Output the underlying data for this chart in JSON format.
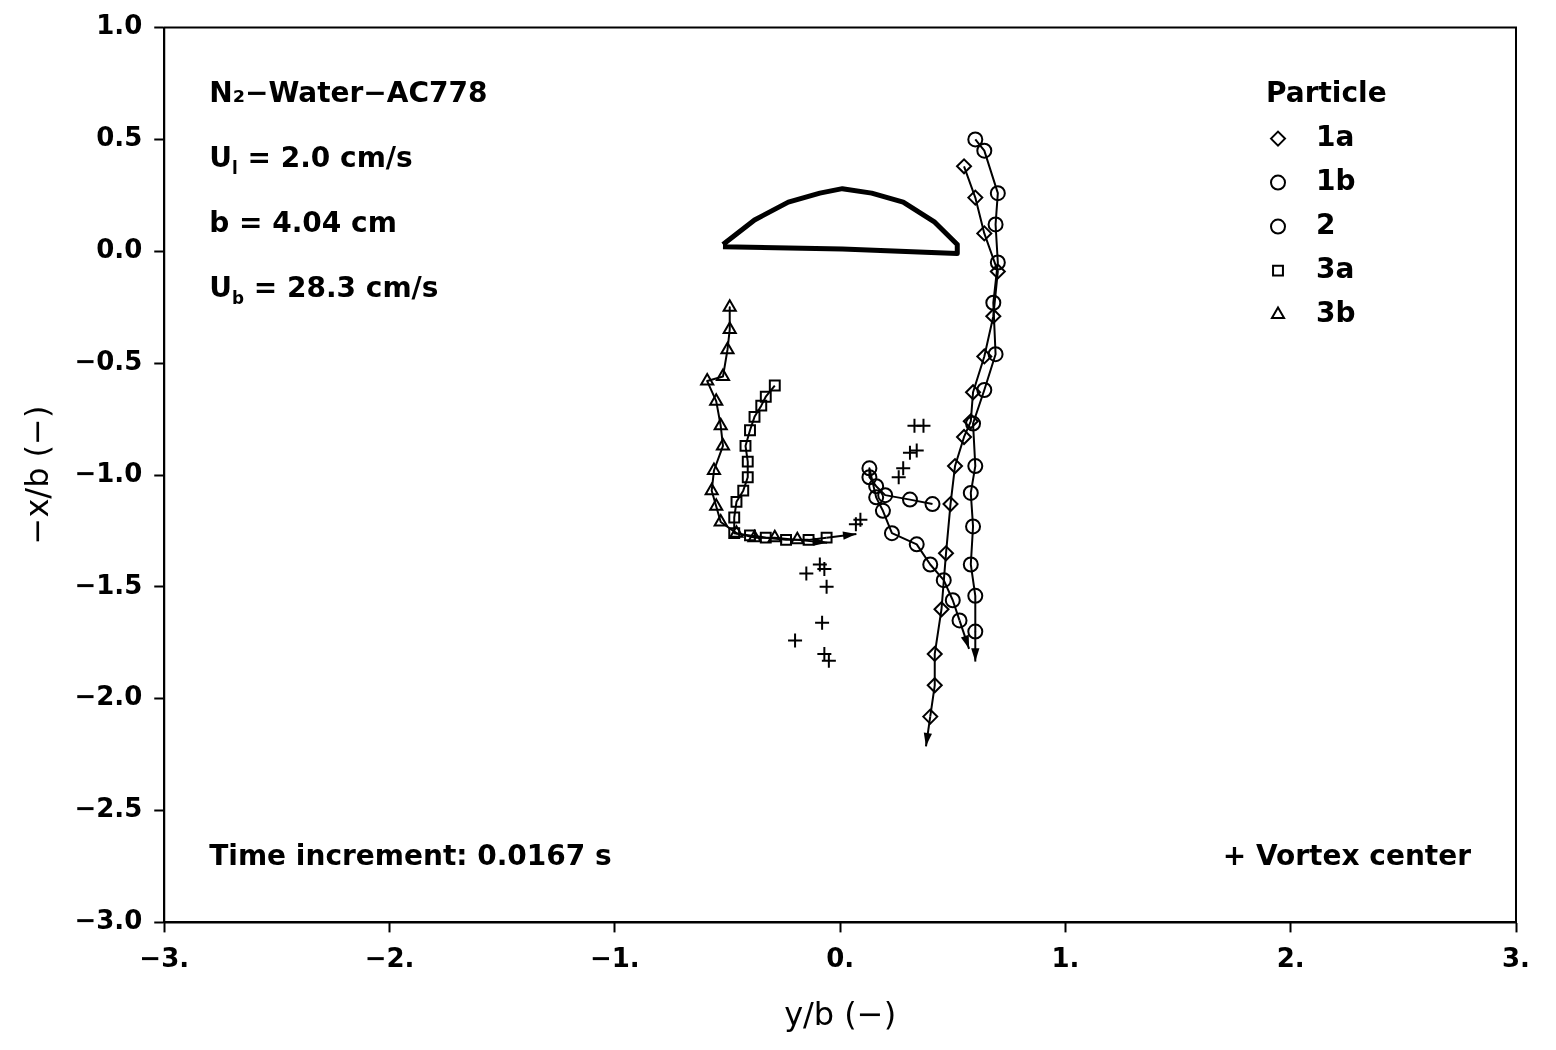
{
  "chart_data": {
    "type": "line",
    "xlabel": "y/b (−)",
    "ylabel": "−x/b (−)",
    "legend_title": "Particle",
    "legend": "top right",
    "grid": false,
    "xlim": [
      -3,
      3
    ],
    "xticks": [
      {
        "value": -3,
        "label": "−3."
      },
      {
        "value": -2,
        "label": "−2."
      },
      {
        "value": -1,
        "label": "−1."
      },
      {
        "value": 0,
        "label": "0."
      },
      {
        "value": 1,
        "label": "1."
      },
      {
        "value": 2,
        "label": "2."
      },
      {
        "value": 3,
        "label": "3."
      }
    ],
    "ylim": [
      -3,
      1
    ],
    "yticks": [
      {
        "value": -3,
        "label": "−3.0"
      },
      {
        "value": -2.5,
        "label": "−2.5"
      },
      {
        "value": -2,
        "label": "−2.0"
      },
      {
        "value": -1.5,
        "label": "−1.5"
      },
      {
        "value": -1,
        "label": "−1.0"
      },
      {
        "value": -0.5,
        "label": "−0.5"
      },
      {
        "value": 0,
        "label": "0.0"
      },
      {
        "value": 0.5,
        "label": "0.5"
      },
      {
        "value": 1,
        "label": "1.0"
      }
    ],
    "annotations": [
      "N₂−Water−AC778",
      "U$_{l}$ = 2.0 cm/s",
      "b = 4.04 cm",
      "U$_{b}$ = 28.3 cm/s",
      "Time increment: 0.0167 s",
      "+ Vortex center"
    ],
    "series": [
      {
        "name": "1a",
        "marker": "diamond",
        "color": "#000000",
        "x": [
          0.55,
          0.6,
          0.64,
          0.7,
          0.68,
          0.64,
          0.59,
          0.58,
          0.55,
          0.51,
          0.49,
          0.47,
          0.45,
          0.42,
          0.42,
          0.4
        ],
        "values": [
          0.38,
          0.24,
          0.08,
          -0.09,
          -0.29,
          -0.47,
          -0.63,
          -0.76,
          -0.83,
          -0.96,
          -1.13,
          -1.35,
          -1.6,
          -1.8,
          -1.94,
          -2.08
        ]
      },
      {
        "name": "1b",
        "marker": "circle",
        "color": "#000000",
        "x": [
          0.6,
          0.64,
          0.7,
          0.69,
          0.7,
          0.68,
          0.69,
          0.64,
          0.59,
          0.6,
          0.58,
          0.59,
          0.58,
          0.6,
          0.6
        ],
        "values": [
          0.5,
          0.45,
          0.26,
          0.12,
          -0.05,
          -0.23,
          -0.46,
          -0.62,
          -0.77,
          -0.96,
          -1.08,
          -1.23,
          -1.4,
          -1.54,
          -1.7
        ]
      },
      {
        "name": "2",
        "marker": "circle",
        "color": "#000000",
        "x": [
          0.41,
          0.31,
          0.2,
          0.16,
          0.13,
          0.13,
          0.16,
          0.19,
          0.23,
          0.34,
          0.4,
          0.46,
          0.5,
          0.53
        ],
        "values": [
          -1.13,
          -1.11,
          -1.09,
          -1.05,
          -1.01,
          -0.97,
          -1.1,
          -1.16,
          -1.26,
          -1.31,
          -1.4,
          -1.47,
          -1.56,
          -1.65
        ]
      },
      {
        "name": "3a",
        "marker": "square",
        "color": "#000000",
        "x": [
          -0.29,
          -0.33,
          -0.35,
          -0.38,
          -0.4,
          -0.42,
          -0.41,
          -0.41,
          -0.43,
          -0.46,
          -0.47,
          -0.47,
          -0.4,
          -0.33,
          -0.24,
          -0.14,
          -0.06
        ],
        "values": [
          -0.6,
          -0.65,
          -0.69,
          -0.74,
          -0.8,
          -0.87,
          -0.94,
          -1.01,
          -1.07,
          -1.12,
          -1.19,
          -1.26,
          -1.27,
          -1.28,
          -1.29,
          -1.29,
          -1.28
        ]
      },
      {
        "name": "3b",
        "marker": "triangle",
        "color": "#000000",
        "x": [
          -0.49,
          -0.49,
          -0.5,
          -0.52,
          -0.59,
          -0.55,
          -0.53,
          -0.52,
          -0.56,
          -0.57,
          -0.55,
          -0.53,
          -0.46,
          -0.38,
          -0.29,
          -0.19
        ],
        "values": [
          -0.25,
          -0.35,
          -0.44,
          -0.56,
          -0.58,
          -0.67,
          -0.78,
          -0.87,
          -0.98,
          -1.07,
          -1.14,
          -1.21,
          -1.26,
          -1.28,
          -1.28,
          -1.29
        ]
      },
      {
        "type": "scatter",
        "marker": "cross",
        "color": "#000000",
        "x": [
          0.33,
          0.37,
          0.31,
          0.34,
          0.26,
          0.28,
          0.07,
          0.09,
          -0.15,
          -0.09,
          -0.07,
          -0.06,
          -0.08,
          -0.2,
          -0.07,
          -0.05
        ],
        "values": [
          -0.78,
          -0.78,
          -0.9,
          -0.89,
          -1.01,
          -0.97,
          -1.22,
          -1.2,
          -1.44,
          -1.4,
          -1.42,
          -1.5,
          -1.66,
          -1.74,
          -1.8,
          -1.83
        ]
      },
      {
        "marker": "none",
        "color": "#000000",
        "x": [
          -0.52,
          -0.38,
          -0.23,
          -0.09,
          0.01,
          0.14,
          0.28,
          0.42,
          0.52,
          0.52,
          0.01,
          -0.52
        ],
        "values": [
          0.03,
          0.14,
          0.22,
          0.26,
          0.28,
          0.26,
          0.22,
          0.13,
          0.03,
          -0.01,
          0.01,
          0.02
        ]
      }
    ]
  }
}
